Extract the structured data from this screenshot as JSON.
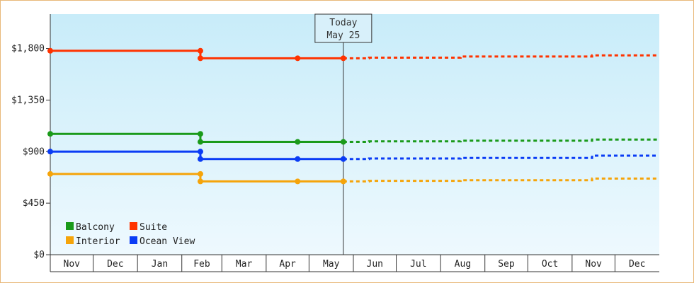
{
  "chart_data": {
    "type": "line",
    "today_label": [
      "Today",
      "May 25"
    ],
    "y_ticks": [
      "$0",
      "$450",
      "$900",
      "$1,350",
      "$1,800"
    ],
    "x_ticks": [
      "Nov",
      "Dec",
      "Jan",
      "Feb",
      "Mar",
      "Apr",
      "May",
      "Jun",
      "Jul",
      "Aug",
      "Sep",
      "Oct",
      "Nov",
      "Dec"
    ],
    "ylim": [
      0,
      2100
    ],
    "x_range": [
      "Nov 1",
      "Dec 31"
    ],
    "today_x": "May 25",
    "grid": false,
    "legend_position": "bottom-left",
    "series": [
      {
        "name": "Balcony",
        "color": "#1a9a1a",
        "history": [
          [
            "Nov 1",
            1055
          ],
          [
            "Feb 14",
            1055
          ],
          [
            "Feb 14",
            985
          ],
          [
            "Apr 23",
            985
          ],
          [
            "May 25",
            985
          ]
        ],
        "markers": [
          [
            "Nov 1",
            1055
          ],
          [
            "Feb 14",
            1055
          ],
          [
            "Feb 14",
            985
          ],
          [
            "Apr 23",
            985
          ],
          [
            "May 25",
            985
          ]
        ],
        "forecast": [
          [
            "May 25",
            985
          ],
          [
            "Jun 12",
            985
          ],
          [
            "Jun 12",
            990
          ],
          [
            "Aug 15",
            990
          ],
          [
            "Aug 15",
            995
          ],
          [
            "Nov 15",
            995
          ],
          [
            "Nov 15",
            1005
          ],
          [
            "Dec 31",
            1005
          ]
        ]
      },
      {
        "name": "Suite",
        "color": "#ff3300",
        "history": [
          [
            "Nov 1",
            1780
          ],
          [
            "Feb 14",
            1780
          ],
          [
            "Feb 14",
            1715
          ],
          [
            "Apr 23",
            1715
          ],
          [
            "May 25",
            1715
          ]
        ],
        "markers": [
          [
            "Nov 1",
            1780
          ],
          [
            "Feb 14",
            1780
          ],
          [
            "Feb 14",
            1715
          ],
          [
            "Apr 23",
            1715
          ],
          [
            "May 25",
            1715
          ]
        ],
        "forecast": [
          [
            "May 25",
            1715
          ],
          [
            "Jun 12",
            1715
          ],
          [
            "Jun 12",
            1720
          ],
          [
            "Aug 15",
            1720
          ],
          [
            "Aug 15",
            1730
          ],
          [
            "Nov 15",
            1730
          ],
          [
            "Nov 15",
            1740
          ],
          [
            "Dec 31",
            1740
          ]
        ]
      },
      {
        "name": "Interior",
        "color": "#f5a40a",
        "history": [
          [
            "Nov 1",
            705
          ],
          [
            "Feb 14",
            705
          ],
          [
            "Feb 14",
            640
          ],
          [
            "Apr 23",
            640
          ],
          [
            "May 25",
            640
          ]
        ],
        "markers": [
          [
            "Nov 1",
            705
          ],
          [
            "Feb 14",
            705
          ],
          [
            "Feb 14",
            640
          ],
          [
            "Apr 23",
            640
          ],
          [
            "May 25",
            640
          ]
        ],
        "forecast": [
          [
            "May 25",
            640
          ],
          [
            "Jun 12",
            640
          ],
          [
            "Jun 12",
            645
          ],
          [
            "Aug 15",
            645
          ],
          [
            "Aug 15",
            650
          ],
          [
            "Nov 15",
            650
          ],
          [
            "Nov 15",
            665
          ],
          [
            "Dec 31",
            665
          ]
        ]
      },
      {
        "name": "Ocean View",
        "color": "#0a3cf5",
        "history": [
          [
            "Nov 1",
            900
          ],
          [
            "Feb 14",
            900
          ],
          [
            "Feb 14",
            835
          ],
          [
            "Apr 23",
            835
          ],
          [
            "May 25",
            835
          ]
        ],
        "markers": [
          [
            "Nov 1",
            900
          ],
          [
            "Feb 14",
            900
          ],
          [
            "Feb 14",
            835
          ],
          [
            "Apr 23",
            835
          ],
          [
            "May 25",
            835
          ]
        ],
        "forecast": [
          [
            "May 25",
            835
          ],
          [
            "Jun 12",
            835
          ],
          [
            "Jun 12",
            840
          ],
          [
            "Aug 15",
            840
          ],
          [
            "Aug 15",
            845
          ],
          [
            "Nov 15",
            845
          ],
          [
            "Nov 15",
            865
          ],
          [
            "Dec 31",
            865
          ]
        ]
      }
    ],
    "legend": [
      "Balcony",
      "Suite",
      "Interior",
      "Ocean View"
    ]
  }
}
